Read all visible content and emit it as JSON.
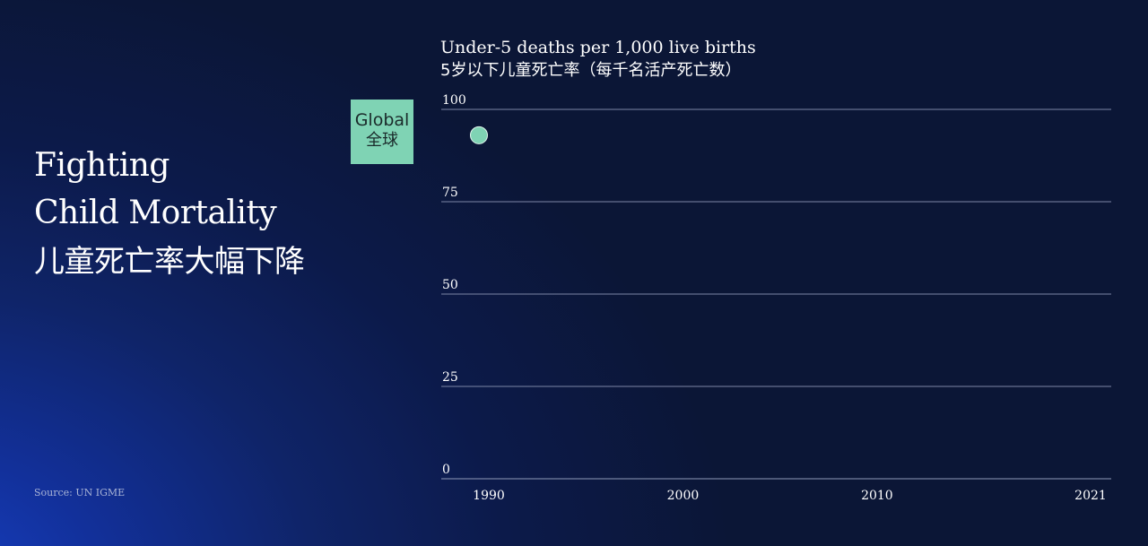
{
  "title": {
    "line1": "Fighting",
    "line2": "Child Mortality",
    "line3": "儿童死亡率大幅下降"
  },
  "source": "Source: UN IGME",
  "legend": {
    "label_en": "Global",
    "label_zh": "全球",
    "color": "#7fd3b4"
  },
  "chart_data": {
    "type": "scatter",
    "ylabel": "Under-5 deaths per 1,000 live births",
    "ylabel_zh": "5岁以下儿童死亡率（每千名活产死亡数）",
    "ylim": [
      0,
      100
    ],
    "xlim": [
      1990,
      2021
    ],
    "y_ticks": [
      "100",
      "75",
      "50",
      "25",
      "0"
    ],
    "x_ticks": [
      "1990",
      "2000",
      "2010",
      "2021"
    ],
    "grid": true,
    "series": [
      {
        "name": "Global",
        "color": "#7fd3b4",
        "points": [
          {
            "x": 1990,
            "y": 93
          }
        ]
      }
    ]
  }
}
